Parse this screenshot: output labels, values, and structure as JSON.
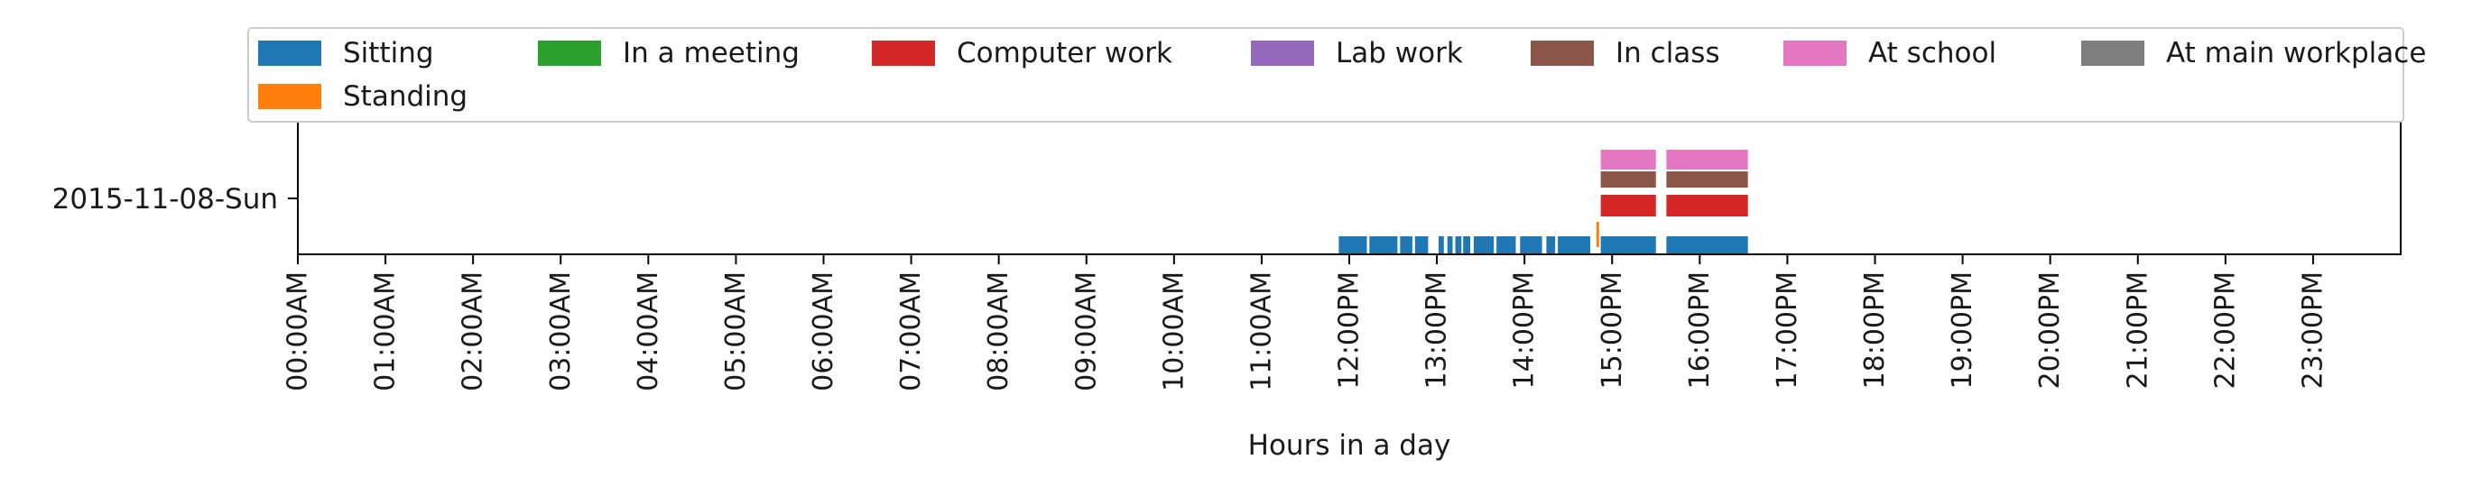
{
  "chart_data": {
    "type": "timeline",
    "xlabel": "Hours in a day",
    "xlim": [
      0,
      24
    ],
    "x_tick_labels": [
      "00:00AM",
      "01:00AM",
      "02:00AM",
      "03:00AM",
      "04:00AM",
      "05:00AM",
      "06:00AM",
      "07:00AM",
      "08:00AM",
      "09:00AM",
      "10:00AM",
      "11:00AM",
      "12:00PM",
      "13:00PM",
      "14:00PM",
      "15:00PM",
      "16:00PM",
      "17:00PM",
      "18:00PM",
      "19:00PM",
      "20:00PM",
      "21:00PM",
      "22:00PM",
      "23:00PM"
    ],
    "y_tick_labels": [
      "2015-11-08-Sun"
    ],
    "legend_position": "top",
    "series": [
      {
        "name": "Sitting",
        "color": "#1f77b4",
        "intervals": [
          [
            11.88,
            12.2
          ],
          [
            12.23,
            12.55
          ],
          [
            12.58,
            12.72
          ],
          [
            12.75,
            12.9
          ],
          [
            13.02,
            13.08
          ],
          [
            13.12,
            13.18
          ],
          [
            13.21,
            13.28
          ],
          [
            13.3,
            13.38
          ],
          [
            13.42,
            13.65
          ],
          [
            13.68,
            13.9
          ],
          [
            13.95,
            14.2
          ],
          [
            14.25,
            14.35
          ],
          [
            14.38,
            14.75
          ],
          [
            14.87,
            15.5
          ],
          [
            15.62,
            16.55
          ]
        ]
      },
      {
        "name": "In a meeting",
        "color": "#2ca02c",
        "intervals": []
      },
      {
        "name": "Computer work",
        "color": "#d62728",
        "intervals": [
          [
            14.87,
            15.5
          ],
          [
            15.62,
            16.55
          ]
        ]
      },
      {
        "name": "Lab work",
        "color": "#9467bd",
        "intervals": []
      },
      {
        "name": "In class",
        "color": "#8c564b",
        "intervals": [
          [
            14.87,
            15.5
          ],
          [
            15.62,
            16.55
          ]
        ]
      },
      {
        "name": "At school",
        "color": "#e377c2",
        "intervals": [
          [
            14.87,
            15.5
          ],
          [
            15.62,
            16.55
          ]
        ]
      },
      {
        "name": "At main workplace",
        "color": "#7f7f7f",
        "intervals": []
      },
      {
        "name": "Standing",
        "color": "#ff7f0e",
        "intervals": [
          [
            14.82,
            14.85
          ]
        ]
      }
    ]
  }
}
